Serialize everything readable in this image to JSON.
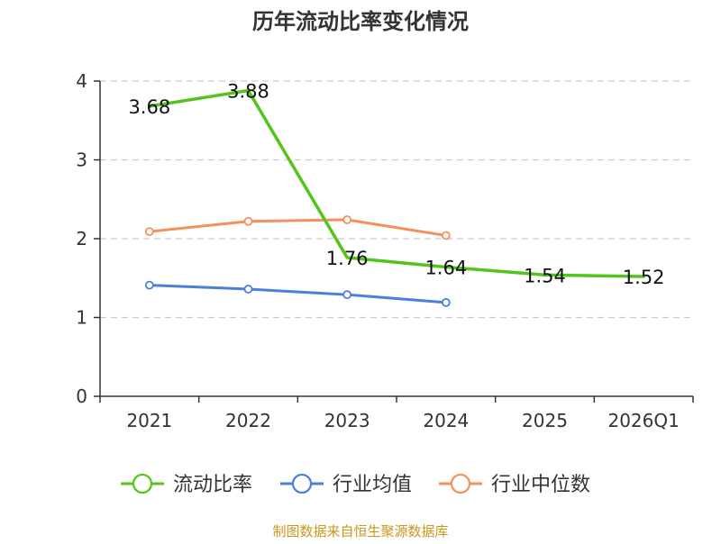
{
  "chart_data": {
    "type": "line",
    "title": "历年流动比率变化情况",
    "categories": [
      "2021",
      "2022",
      "2023",
      "2024",
      "2025",
      "2026Q1"
    ],
    "ylim": [
      0,
      4
    ],
    "yticks": [
      "0",
      "1",
      "2",
      "3",
      "4"
    ],
    "grid": true,
    "legend_position": "bottom",
    "series": [
      {
        "name": "流动比率",
        "color": "#52c41a",
        "values": [
          3.68,
          3.88,
          1.76,
          1.64,
          1.54,
          1.52
        ],
        "labels": [
          "3.68",
          "3.88",
          "1.76",
          "1.64",
          "1.54",
          "1.52"
        ],
        "markers": false
      },
      {
        "name": "行业均值",
        "color": "#4a7fdc",
        "values": [
          1.41,
          1.36,
          1.29,
          1.19,
          null,
          null
        ],
        "markers": true
      },
      {
        "name": "行业中位数",
        "color": "#f5905a",
        "values": [
          2.09,
          2.22,
          2.24,
          2.04,
          null,
          null
        ],
        "markers": true
      }
    ]
  },
  "footer": {
    "source": "制图数据来自恒生聚源数据库"
  }
}
